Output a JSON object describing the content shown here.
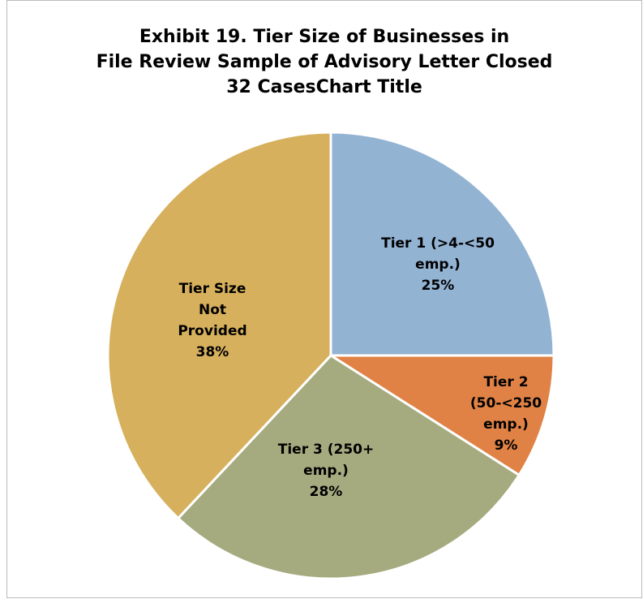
{
  "chart_data": {
    "type": "pie",
    "title": [
      "Exhibit 19. Tier Size of Businesses in",
      "File Review Sample of Advisory Letter Closed",
      "32 CasesChart Title"
    ],
    "categories": [
      "Tier 1 (>4-<50 emp.)",
      "Tier 2 (50-<250 emp.)",
      "Tier 3 (250+ emp.)",
      "Tier Size Not Provided"
    ],
    "values": [
      25,
      9,
      28,
      38
    ],
    "value_labels": [
      "25%",
      "9%",
      "28%",
      "38%"
    ],
    "colors": [
      "#93b3d3",
      "#e08245",
      "#a5ab7f",
      "#d6b05c"
    ]
  }
}
